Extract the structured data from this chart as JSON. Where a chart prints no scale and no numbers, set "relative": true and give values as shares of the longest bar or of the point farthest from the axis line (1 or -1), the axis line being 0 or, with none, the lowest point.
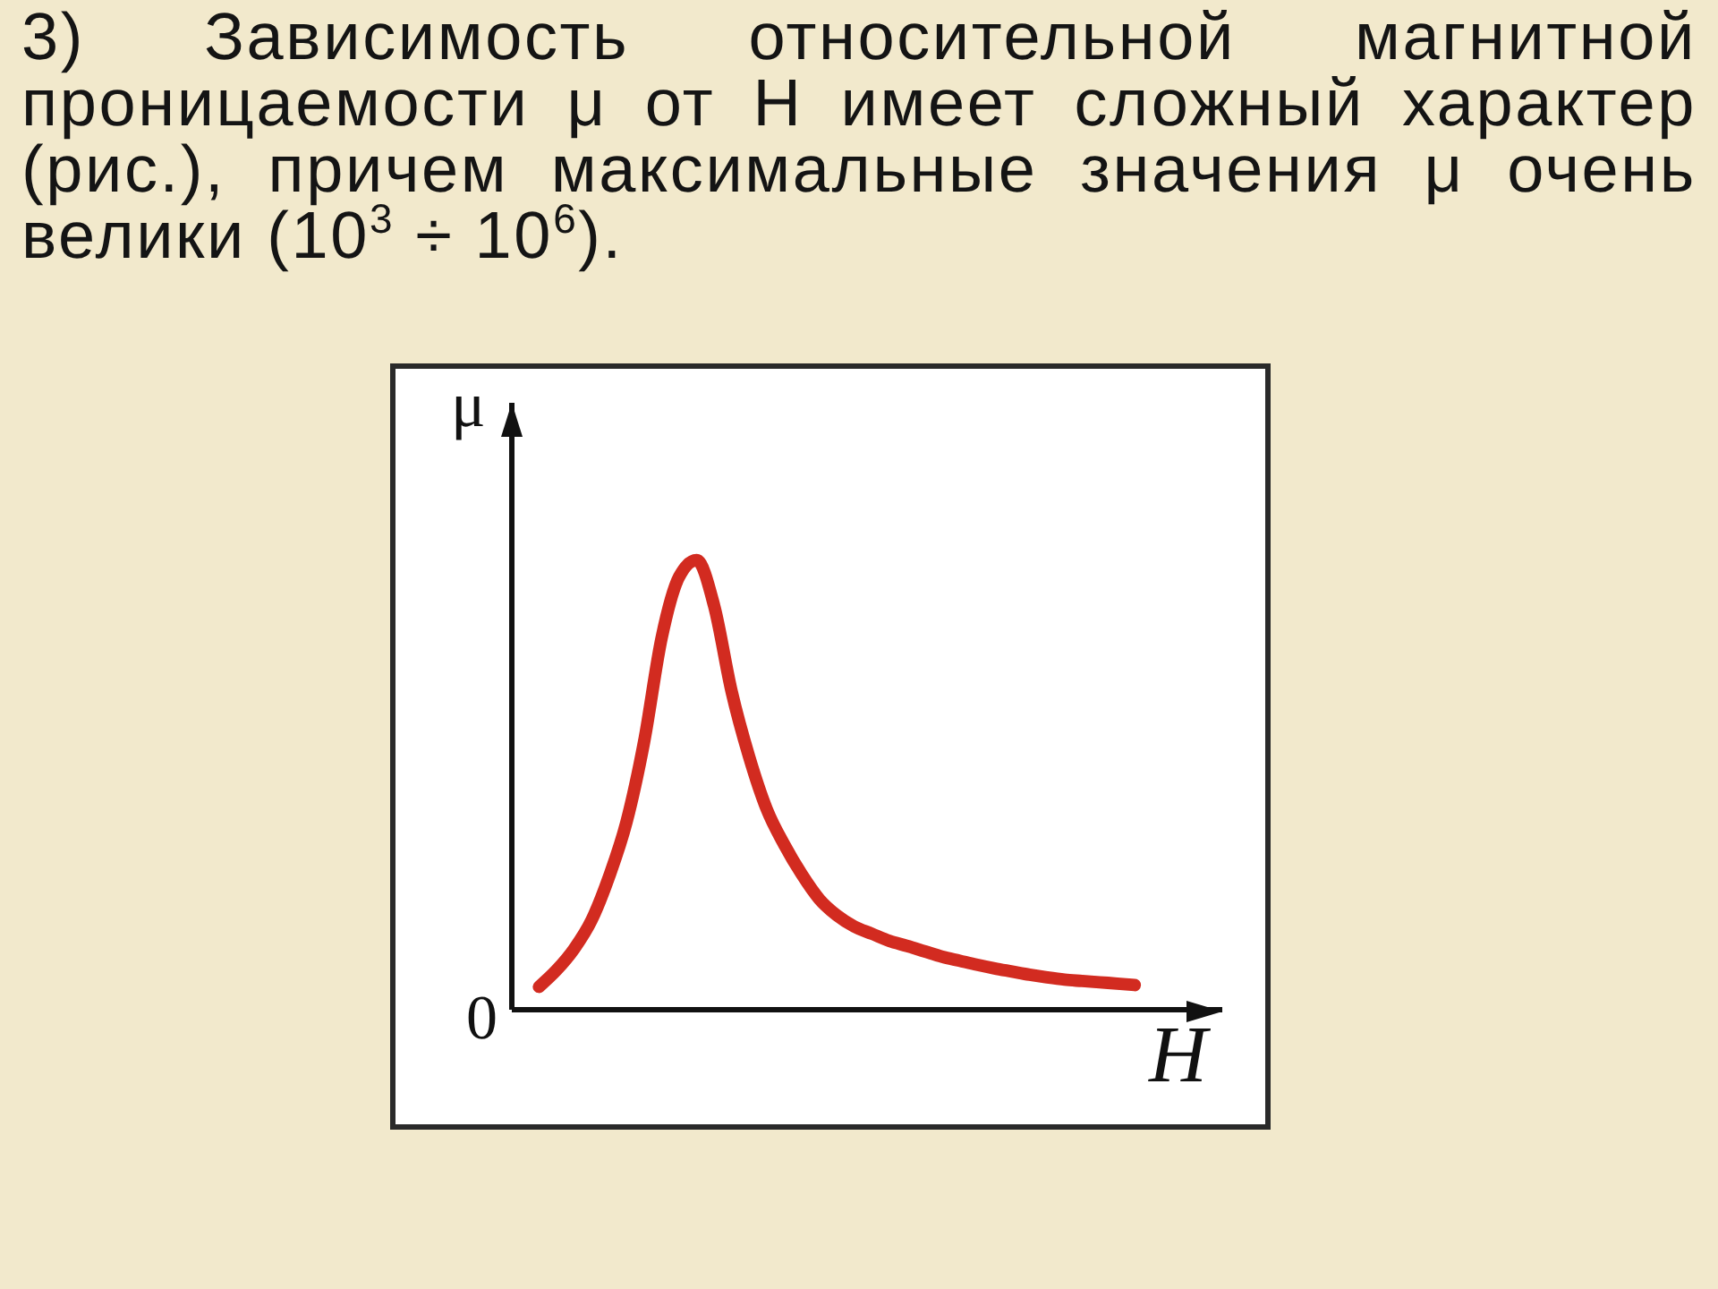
{
  "chart_data": {
    "type": "line",
    "relative": true,
    "title": "3) Зависимость относительной магнитной проницаемости μ от H имеет сложный характер (рис.), причем максимальные значения μ очень велики (10$^{3}$ ÷ 10$^{6}$).",
    "xlabel": "H",
    "ylabel": "μ",
    "annotations": [
      "0"
    ],
    "categories": [
      null,
      null,
      null,
      null,
      null,
      null,
      null,
      null,
      null,
      null,
      null,
      null,
      null,
      null,
      null,
      null,
      null,
      null,
      null,
      null,
      null,
      null,
      null,
      null,
      null,
      null,
      null,
      null,
      null,
      null,
      null,
      null,
      null,
      null,
      null,
      null,
      null,
      null,
      null,
      null
    ],
    "series": [
      {
        "color": "#d22b20",
        "values": [
          null,
          0.051,
          0.088,
          0.135,
          0.199,
          0.296,
          0.418,
          0.596,
          0.827,
          0.963,
          1,
          0.898,
          0.707,
          0.562,
          0.446,
          0.367,
          0.301,
          0.246,
          0.21,
          0.185,
          0.169,
          0.153,
          0.142,
          0.13,
          0.118,
          0.109,
          0.1,
          0.092,
          0.085,
          0.078,
          0.072,
          0.067,
          0.064,
          0.061,
          0.058,
          0.055,
          null,
          null,
          null,
          null
        ]
      }
    ]
  }
}
